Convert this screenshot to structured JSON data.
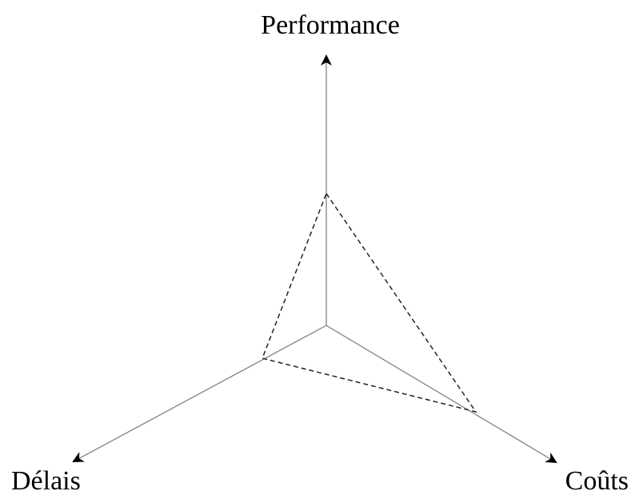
{
  "diagram": {
    "axes": [
      {
        "key": "performance",
        "label": "Performance"
      },
      {
        "key": "delais",
        "label": "Délais"
      },
      {
        "key": "couts",
        "label": "Coûts"
      }
    ],
    "colors": {
      "background": "#ffffff",
      "axis_line": "#7a7a7a",
      "arrowhead": "#000000",
      "triangle": "#222222",
      "text": "#000000"
    },
    "triangle_style": "dashed"
  }
}
